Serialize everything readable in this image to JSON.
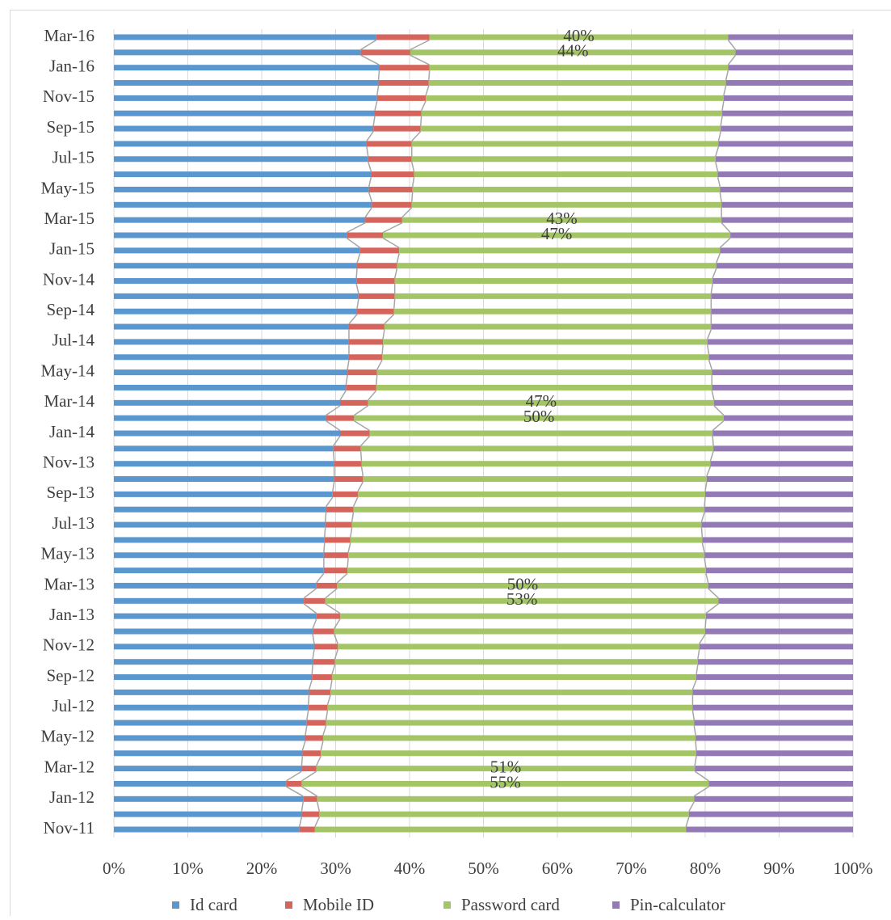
{
  "chart_data": {
    "type": "stacked-bar-horizontal",
    "categories": [
      "Nov-11",
      null,
      "Jan-12",
      null,
      "Mar-12",
      null,
      "May-12",
      null,
      "Jul-12",
      null,
      "Sep-12",
      null,
      "Nov-12",
      null,
      "Jan-13",
      null,
      "Mar-13",
      null,
      "May-13",
      null,
      "Jul-13",
      null,
      "Sep-13",
      null,
      "Nov-13",
      null,
      "Jan-14",
      null,
      "Mar-14",
      null,
      "May-14",
      null,
      "Jul-14",
      null,
      "Sep-14",
      null,
      "Nov-14",
      null,
      "Jan-15",
      null,
      "Mar-15",
      null,
      "May-15",
      null,
      "Jul-15",
      null,
      "Sep-15",
      null,
      "Nov-15",
      null,
      "Jan-16",
      null,
      "Mar-16"
    ],
    "series": [
      {
        "name": "Id card",
        "color": "#5b97cf",
        "values": [
          25.1,
          25.4,
          25.6,
          23.3,
          25.4,
          25.5,
          25.9,
          26.1,
          26.3,
          26.4,
          26.8,
          26.9,
          27.1,
          26.9,
          27.4,
          25.7,
          27.4,
          28.4,
          28.4,
          28.5,
          28.6,
          28.7,
          29.6,
          29.8,
          29.8,
          29.7,
          30.6,
          28.7,
          30.6,
          31.4,
          31.6,
          31.8,
          31.8,
          31.8,
          32.9,
          33.1,
          32.8,
          32.9,
          33.3,
          31.5,
          34.0,
          34.9,
          34.5,
          34.8,
          34.4,
          34.2,
          35.1,
          35.3,
          35.6,
          35.8,
          35.9,
          33.4,
          35.5
        ]
      },
      {
        "name": "Mobile ID",
        "color": "#d4645c",
        "values": [
          2.1,
          2.4,
          1.9,
          2.1,
          2.0,
          2.5,
          2.4,
          2.6,
          2.6,
          2.9,
          2.7,
          3.0,
          3.2,
          2.9,
          3.2,
          2.9,
          2.8,
          3.2,
          3.3,
          3.5,
          3.6,
          3.7,
          3.4,
          3.9,
          3.7,
          3.7,
          4.0,
          3.8,
          3.8,
          4.1,
          4.0,
          4.5,
          4.6,
          4.8,
          5.0,
          4.9,
          5.2,
          5.4,
          5.3,
          4.9,
          5.0,
          5.4,
          5.9,
          5.8,
          5.9,
          6.1,
          6.4,
          6.3,
          6.6,
          6.8,
          6.8,
          6.7,
          7.2
        ]
      },
      {
        "name": "Password card",
        "color": "#a3c565",
        "values": [
          50.2,
          50.0,
          51.0,
          55.1,
          51.2,
          50.8,
          50.4,
          49.8,
          49.4,
          49.0,
          49.3,
          49.1,
          48.9,
          50.2,
          49.5,
          53.2,
          50.2,
          48.5,
          48.2,
          47.6,
          47.3,
          47.5,
          47.0,
          46.5,
          47.2,
          47.7,
          46.4,
          50.0,
          46.8,
          45.4,
          45.3,
          44.2,
          43.9,
          44.2,
          42.9,
          42.8,
          43.0,
          43.2,
          43.4,
          47.0,
          43.2,
          41.9,
          41.6,
          41.1,
          41.1,
          41.5,
          40.6,
          40.7,
          40.3,
          40.2,
          40.4,
          44.0,
          40.4
        ],
        "value_labels": [
          null,
          null,
          null,
          "55%",
          "51%",
          null,
          null,
          null,
          null,
          null,
          null,
          null,
          null,
          null,
          null,
          "53%",
          "50%",
          null,
          null,
          null,
          null,
          null,
          null,
          null,
          null,
          null,
          null,
          "50%",
          "47%",
          null,
          null,
          null,
          null,
          null,
          null,
          null,
          null,
          null,
          null,
          "47%",
          "43%",
          null,
          null,
          null,
          null,
          null,
          null,
          null,
          null,
          null,
          null,
          "44%",
          "40%"
        ]
      },
      {
        "name": "Pin-calculator",
        "color": "#9379b5",
        "values": [
          22.6,
          22.2,
          21.5,
          19.5,
          21.4,
          21.2,
          21.3,
          21.5,
          21.7,
          21.7,
          21.2,
          21.0,
          20.8,
          20.0,
          19.9,
          18.2,
          19.6,
          19.9,
          20.1,
          20.4,
          20.5,
          20.1,
          20.0,
          19.8,
          19.3,
          18.9,
          19.0,
          17.5,
          18.8,
          19.1,
          19.1,
          19.5,
          19.7,
          19.2,
          19.2,
          19.2,
          19.0,
          18.5,
          18.0,
          16.6,
          17.8,
          17.8,
          18.0,
          18.3,
          18.6,
          18.2,
          17.9,
          17.7,
          17.5,
          17.2,
          16.9,
          15.9,
          16.9
        ]
      }
    ],
    "xlim": [
      0,
      100
    ],
    "xticks": [
      {
        "value": 0,
        "label": "0%"
      },
      {
        "value": 10,
        "label": "10%"
      },
      {
        "value": 20,
        "label": "20%"
      },
      {
        "value": 30,
        "label": "30%"
      },
      {
        "value": 40,
        "label": "40%"
      },
      {
        "value": 50,
        "label": "50%"
      },
      {
        "value": 60,
        "label": "60%"
      },
      {
        "value": 70,
        "label": "70%"
      },
      {
        "value": 80,
        "label": "80%"
      },
      {
        "value": 90,
        "label": "90%"
      },
      {
        "value": 100,
        "label": "100%"
      }
    ],
    "grid": true,
    "legend": "bottom"
  }
}
